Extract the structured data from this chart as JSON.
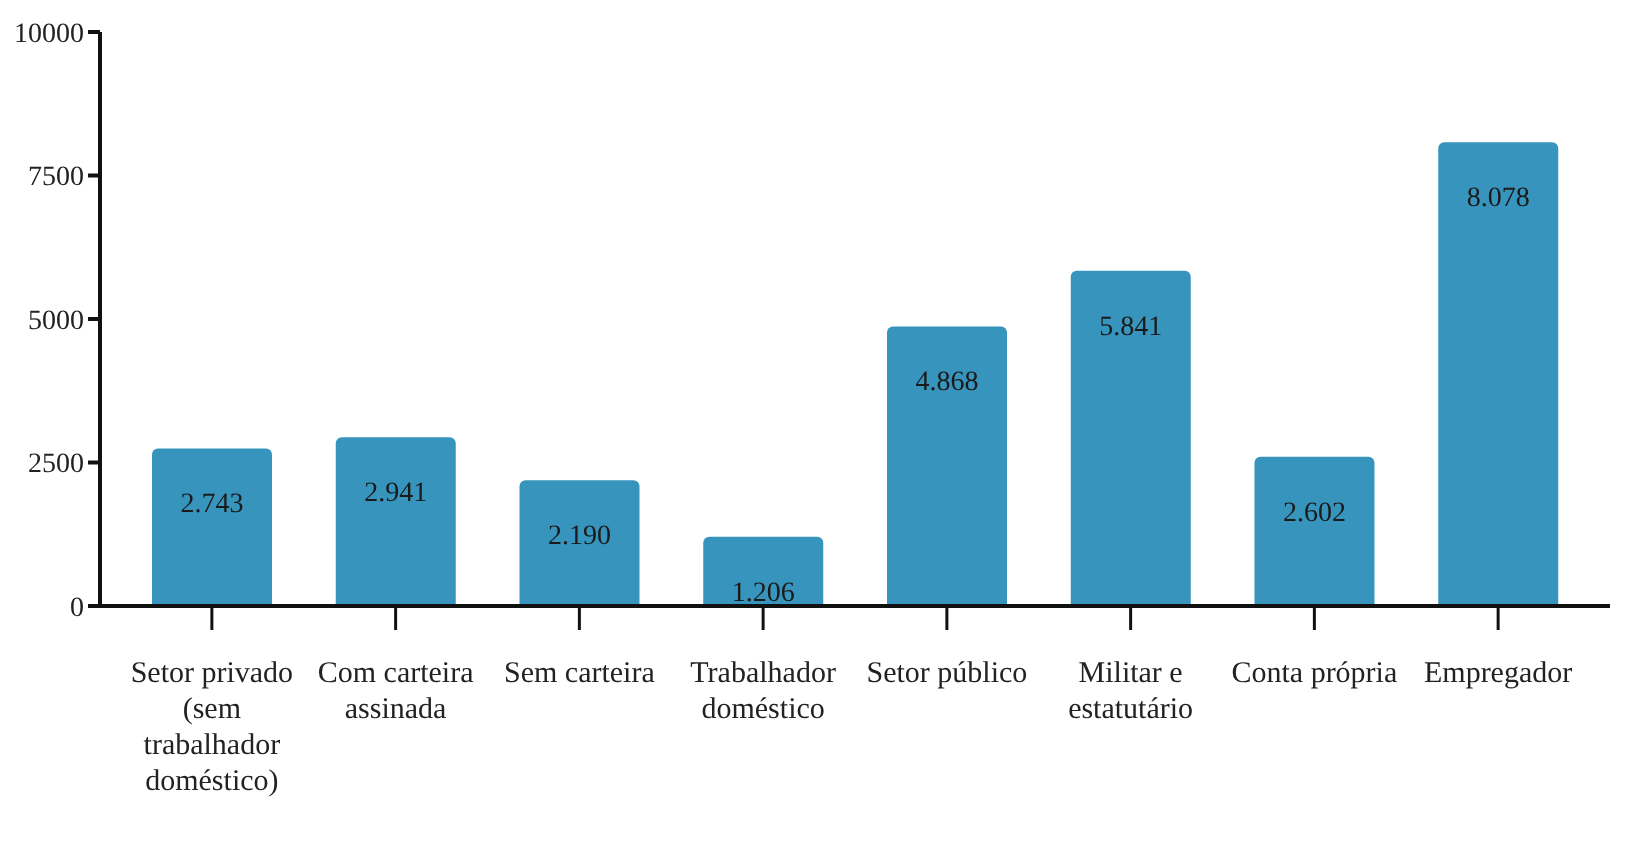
{
  "chart_data": {
    "type": "bar",
    "categories": [
      "Setor privado (sem trabalhador doméstico)",
      "Com carteira assinada",
      "Sem carteira",
      "Trabalhador doméstico",
      "Setor público",
      "Militar e estatutário",
      "Conta própria",
      "Empregador"
    ],
    "values": [
      2743,
      2941,
      2190,
      1206,
      4868,
      5841,
      2602,
      8078
    ],
    "value_labels": [
      "2.743",
      "2.941",
      "2.190",
      "1.206",
      "4.868",
      "5.841",
      "2.602",
      "8.078"
    ],
    "color": "#3795bd",
    "ylim": [
      0,
      10000
    ],
    "yticks": [
      0,
      2500,
      5000,
      7500,
      10000
    ],
    "grid": false,
    "legend": false
  }
}
